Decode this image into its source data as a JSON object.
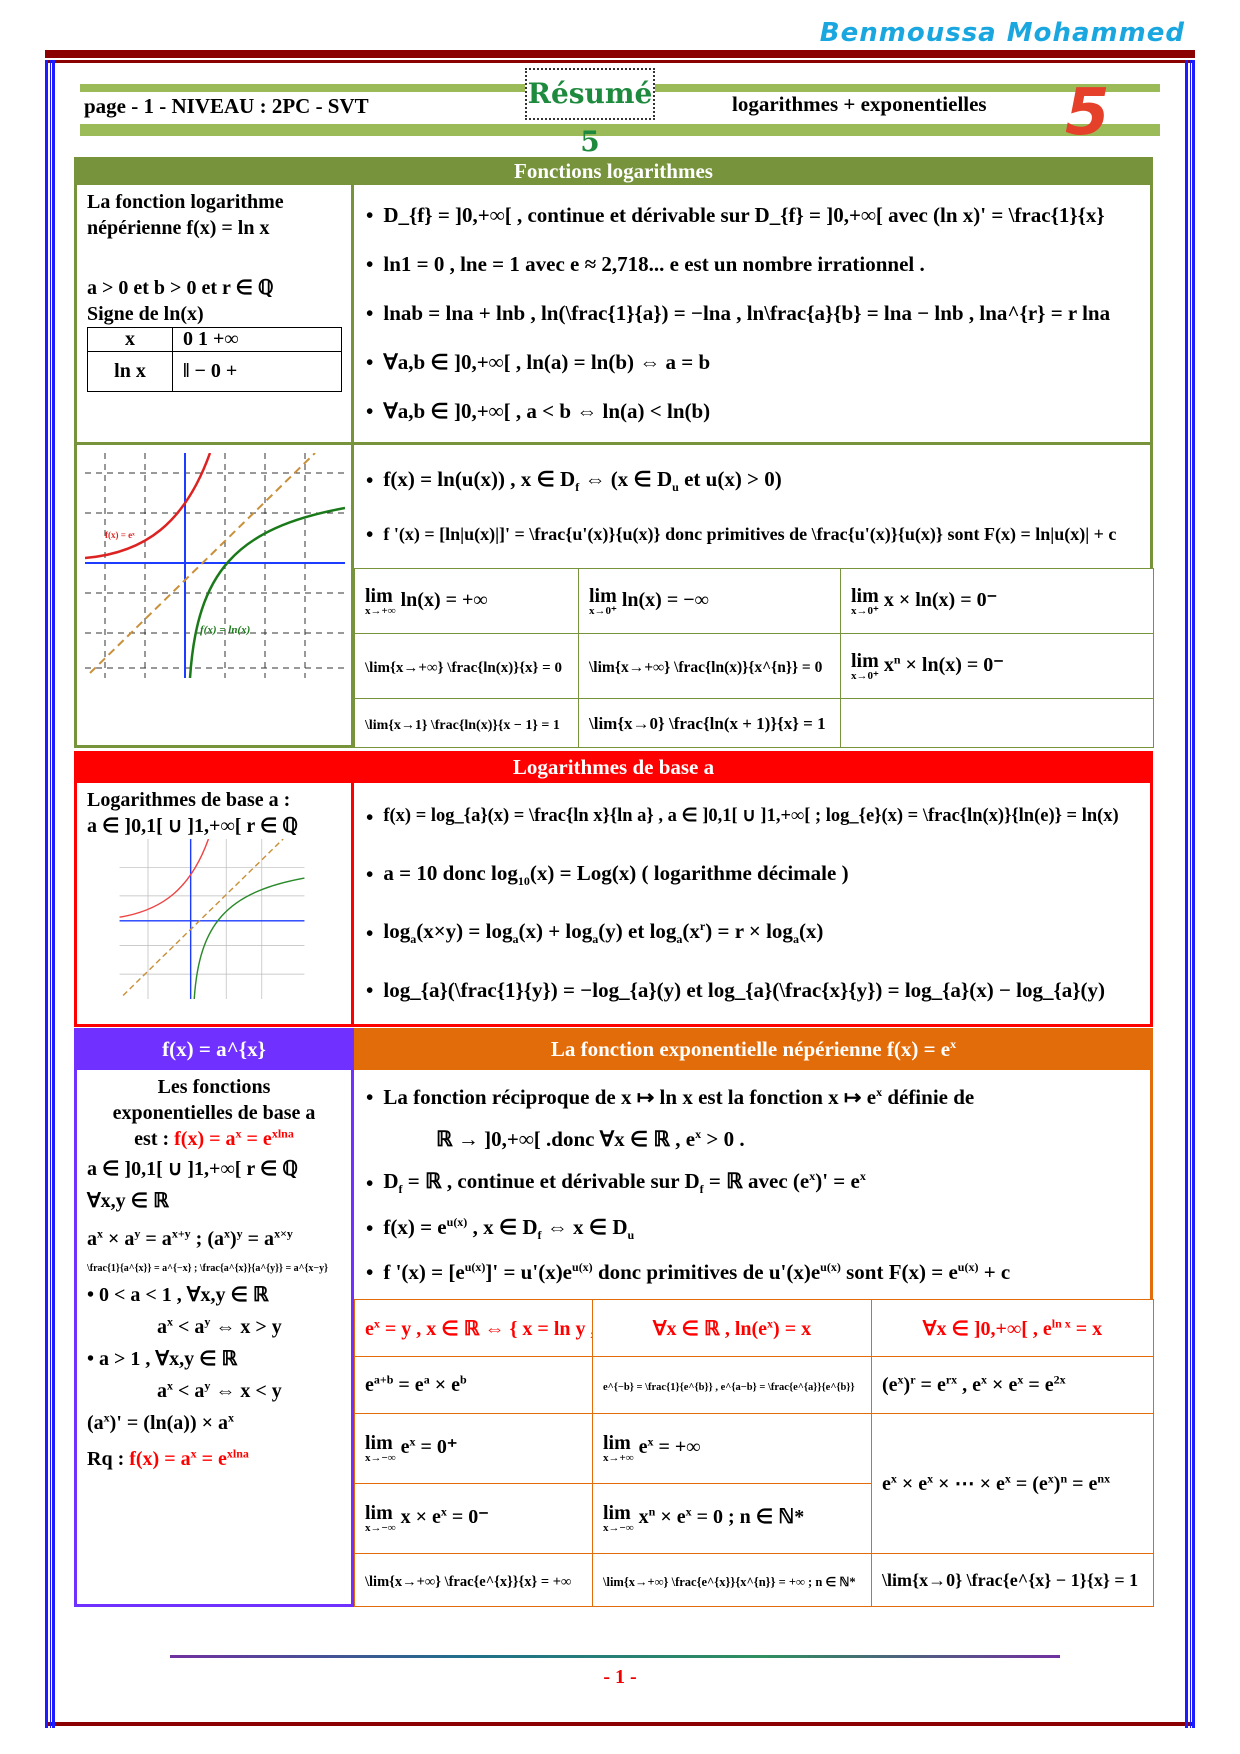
{
  "header": {
    "author": "Benmoussa Mohammed",
    "left": "page - 1 -  NIVEAU : 2PC - SVT",
    "badge": "Résumé 5",
    "right": "logarithmes   +  exponentielles",
    "logo": "5"
  },
  "colors": {
    "green": "#77933c",
    "red": "#ff0000",
    "purple": "#7030ff",
    "orange": "#e36c0a",
    "band": "#9bbb59"
  },
  "s1": {
    "title": "Fonctions logarithmes",
    "left": [
      "La fonction logarithme",
      "népérienne f(x) = ln x",
      "a > 0  et  b > 0  et  r ∈ ℚ",
      "Signe de ln(x)"
    ],
    "sign_table": {
      "r1": [
        "x",
        "0     1     +∞"
      ],
      "r2": [
        "ln x",
        "‖  −   0   +"
      ]
    },
    "bullets": [
      "D_{f} = ]0,+∞[  , continue et dérivable sur  D_{f} = ]0,+∞[  avec (ln x)' = \\frac{1}{x}",
      "ln1 = 0 , lne = 1  avec e ≈ 2,718... e est un nombre irrationnel .",
      "lnab = lna + lnb ,  ln(\\frac{1}{a}) = −lna ,  ln\\frac{a}{b} = lna − lnb  , lna^{r} = r lna",
      "∀a,b ∈ ]0,+∞[ , ln(a) = ln(b) ⇔ a = b",
      "∀a,b ∈ ]0,+∞[ , a < b ⇔ ln(a) < ln(b)"
    ],
    "graph_label": "f(x) = ln(x)",
    "graph_label2": "f(x) = eˣ",
    "bullets2": [
      "f(x) = ln(u(x))  ,  x ∈ D_{f} ⇔ (x ∈ D_{u}  et  u(x) > 0)",
      "f '(x) = [ln|u(x)|]' = \\frac{u'(x)}{u(x)}  donc primitives de  \\frac{u'(x)}{u(x)}  sont  F(x) = ln|u(x)| + c"
    ],
    "limits": [
      [
        "\\lim{x→+∞} ln(x) = +∞",
        "\\lim{x→0⁺} ln(x) = −∞",
        "\\lim{x→0⁺} x × ln(x) = 0⁻"
      ],
      [
        "\\lim{x→+∞} \\frac{ln(x)}{x} = 0",
        "\\lim{x→+∞} \\frac{ln(x)}{x^{n}} = 0",
        "\\lim{x→0⁺} x^{n} × ln(x) = 0⁻"
      ],
      [
        "\\lim{x→1} \\frac{ln(x)}{x − 1} = 1",
        "\\lim{x→0} \\frac{ln(x + 1)}{x} = 1",
        ""
      ]
    ]
  },
  "s2": {
    "title": "Logarithmes de base a",
    "left": [
      "Logarithmes de base a :",
      "a ∈ ]0,1[ ∪ ]1,+∞[  r ∈ ℚ"
    ],
    "bullets": [
      "f(x) = log_{a}(x) = \\frac{ln x}{ln a}  , a ∈ ]0,1[ ∪ ]1,+∞[  ;  log_{e}(x) = \\frac{ln(x)}{ln(e)} = ln(x)",
      "a = 10  donc  log_{10}(x) = Log(x)  ( logarithme décimale )",
      "log_{a}(x×y) = log_{a}(x) + log_{a}(y)  et  log_{a}(x^{r}) = r × log_{a}(x)",
      "log_{a}(\\frac{1}{y}) = −log_{a}(y)   et  log_{a}(\\frac{x}{y}) = log_{a}(x) − log_{a}(y)"
    ]
  },
  "s3": {
    "left_title": "f(x) = a^{x}",
    "title": "La fonction exponentielle népérienne  f(x) = e^{x}",
    "left": [
      "Les fonctions",
      "exponentielles de base a"
    ],
    "left_def_label": "est : ",
    "left_def": "f(x) = a^{x} = e^{xlna}",
    "left2": [
      "a ∈ ]0,1[ ∪ ]1,+∞[  r ∈ ℚ",
      "∀x,y ∈ ℝ",
      "a^{x} × a^{y} = a^{x+y} ; (a^{x})^{y} = a^{x×y}",
      "\\frac{1}{a^{x}} = a^{−x} ;  \\frac{a^{x}}{a^{y}} = a^{x−y}",
      "• 0 < a < 1 , ∀x,y ∈ ℝ",
      "a^{x} < a^{y} ⇔ x > y",
      "• a > 1 , ∀x,y ∈ ℝ",
      "a^{x} < a^{y} ⇔ x < y",
      "(a^{x})' = (ln(a)) × a^{x}"
    ],
    "rq_label": "Rq : ",
    "rq": "f(x) = a^{x} = e^{xlna}",
    "bullets": [
      "La fonction réciproque de  x ↦ ln x  est la fonction  x ↦ e^{x}  définie de",
      "ℝ → ]0,+∞[ .donc  ∀x ∈ ℝ ,  e^{x} > 0  .",
      "D_{f} = ℝ  , continue et dérivable sur  D_{f} = ℝ  avec  (e^{x})' = e^{x}",
      "f(x) = e^{u(x)}  ,  x ∈ D_{f} ⇔ x ∈ D_{u}",
      "f '(x) = [e^{u(x)}]' = u'(x)e^{u(x)}  donc primitives de  u'(x)e^{u(x)} sont  F(x) = e^{u(x)} + c"
    ],
    "grid": [
      [
        "e^{x} = y , x ∈ ℝ  ⇔  { x = ln y , y > 0 }",
        "∀x ∈ ℝ , ln(e^{x}) = x",
        "∀x ∈ ]0,+∞[ , e^{ln x} = x"
      ],
      [
        "e^{a+b} = e^{a} × e^{b}",
        "e^{−b} = \\frac{1}{e^{b}} , e^{a−b} = \\frac{e^{a}}{e^{b}}",
        "(e^{x})^{r} = e^{rx} , e^{x} × e^{x} = e^{2x}"
      ],
      [
        "\\lim{x→−∞} e^{x} = 0⁺",
        "\\lim{x→+∞} e^{x} = +∞",
        "e^{x} × e^{x} × ⋯ × e^{x} = (e^{x})^{n} = e^{nx}"
      ],
      [
        "\\lim{x→−∞} x × e^{x} = 0⁻",
        "\\lim{x→−∞} x^{n} × e^{x} = 0  ;  n ∈ ℕ*",
        ""
      ],
      [
        "\\lim{x→+∞} \\frac{e^{x}}{x} = +∞",
        "\\lim{x→+∞} \\frac{e^{x}}{x^{n}} = +∞   ;  n ∈ ℕ*",
        "\\lim{x→0} \\frac{e^{x} − 1}{x} = 1"
      ]
    ]
  },
  "footer": {
    "page": "- 1 -"
  }
}
